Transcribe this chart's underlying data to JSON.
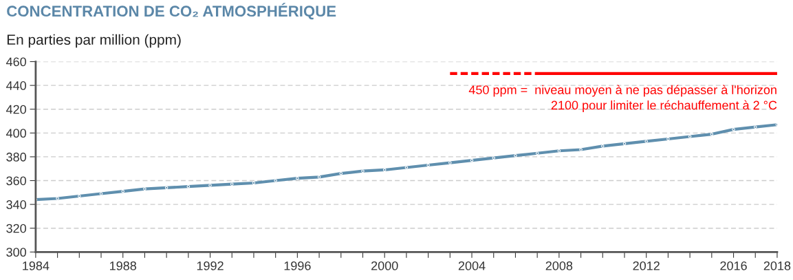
{
  "chart_data": {
    "type": "line",
    "title": "CONCENTRATION DE CO₂ ATMOSPHÉRIQUE",
    "subtitle": "En parties par million (ppm)",
    "x": [
      1984,
      1985,
      1986,
      1987,
      1988,
      1989,
      1990,
      1991,
      1992,
      1993,
      1994,
      1995,
      1996,
      1997,
      1998,
      1999,
      2000,
      2001,
      2002,
      2003,
      2004,
      2005,
      2006,
      2007,
      2008,
      2009,
      2010,
      2011,
      2012,
      2013,
      2014,
      2015,
      2016,
      2017,
      2018
    ],
    "series": [
      {
        "color": "#5f8fae",
        "marker": "circle",
        "line_style": "solid",
        "values": [
          344,
          345,
          347,
          349,
          351,
          353,
          354,
          355,
          356,
          357,
          358,
          360,
          362,
          363,
          366,
          368,
          369,
          371,
          373,
          375,
          377,
          379,
          381,
          383,
          385,
          386,
          389,
          391,
          393,
          395,
          397,
          399,
          403,
          405,
          407
        ]
      },
      {
        "color": "#ff0000",
        "marker": "none",
        "line_style": "dashed",
        "x": [
          2003,
          2007
        ],
        "values": [
          450,
          450
        ]
      },
      {
        "color": "#ff0000",
        "marker": "none",
        "line_style": "solid",
        "x": [
          2007,
          2018
        ],
        "values": [
          450,
          450
        ]
      }
    ],
    "annotations": [
      {
        "text": "450 ppm =  niveau moyen à ne pas dépasser à l'horizon\n2100 pour limiter le réchauffement à 2 °C",
        "x": 2018,
        "y": 450
      }
    ],
    "xlim": [
      1984,
      2018
    ],
    "xticks": [
      1984,
      {
        "value": 1985,
        "label": null
      },
      {
        "value": 1986,
        "label": null
      },
      {
        "value": 1987,
        "label": null
      },
      1988,
      {
        "value": 1989,
        "label": null
      },
      {
        "value": 1990,
        "label": null
      },
      {
        "value": 1991,
        "label": null
      },
      1992,
      {
        "value": 1993,
        "label": null
      },
      {
        "value": 1994,
        "label": null
      },
      {
        "value": 1995,
        "label": null
      },
      1996,
      {
        "value": 1997,
        "label": null
      },
      {
        "value": 1998,
        "label": null
      },
      {
        "value": 1999,
        "label": null
      },
      2000,
      {
        "value": 2001,
        "label": null
      },
      {
        "value": 2002,
        "label": null
      },
      {
        "value": 2003,
        "label": null
      },
      2004,
      {
        "value": 2005,
        "label": null
      },
      {
        "value": 2006,
        "label": null
      },
      {
        "value": 2007,
        "label": null
      },
      2008,
      {
        "value": 2009,
        "label": null
      },
      {
        "value": 2010,
        "label": null
      },
      {
        "value": 2011,
        "label": null
      },
      2012,
      {
        "value": 2013,
        "label": null
      },
      {
        "value": 2014,
        "label": null
      },
      {
        "value": 2015,
        "label": null
      },
      2016,
      {
        "value": 2017,
        "label": null
      },
      2018
    ],
    "ylim": [
      300,
      460
    ],
    "yticks": [
      300,
      320,
      340,
      360,
      380,
      400,
      420,
      440,
      460
    ],
    "grid": "y"
  }
}
